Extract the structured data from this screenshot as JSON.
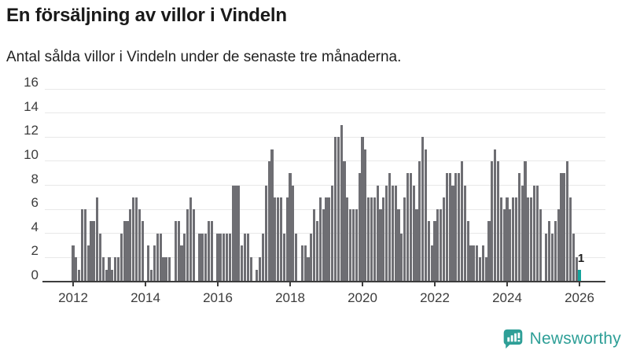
{
  "header": {
    "title": "En försäljning av villor i Vindeln",
    "subtitle": "Antal sålda villor i Vindeln under de senaste tre månaderna."
  },
  "chart_data": {
    "type": "bar",
    "title": "En försäljning av villor i Vindeln",
    "subtitle": "Antal sålda villor i Vindeln under de senaste tre månaderna.",
    "x_unit": "month",
    "x_start": "2012-01",
    "x_end": "2026-01",
    "values": [
      3,
      2,
      1,
      6,
      6,
      3,
      5,
      5,
      7,
      4,
      2,
      1,
      2,
      1,
      2,
      2,
      4,
      5,
      5,
      6,
      7,
      7,
      6,
      5,
      0,
      3,
      1,
      3,
      4,
      4,
      2,
      2,
      2,
      0,
      5,
      5,
      3,
      4,
      6,
      7,
      6,
      0,
      4,
      4,
      4,
      5,
      5,
      0,
      4,
      4,
      4,
      4,
      4,
      8,
      8,
      8,
      3,
      4,
      4,
      2,
      0,
      1,
      2,
      4,
      8,
      10,
      11,
      7,
      7,
      7,
      4,
      7,
      9,
      8,
      4,
      0,
      3,
      3,
      2,
      4,
      6,
      5,
      7,
      6,
      7,
      7,
      8,
      12,
      12,
      13,
      10,
      7,
      6,
      6,
      6,
      9,
      12,
      11,
      7,
      7,
      7,
      8,
      6,
      7,
      8,
      9,
      8,
      8,
      6,
      4,
      7,
      9,
      9,
      8,
      6,
      10,
      12,
      11,
      5,
      3,
      5,
      6,
      6,
      7,
      9,
      9,
      8,
      9,
      9,
      10,
      8,
      5,
      3,
      3,
      3,
      2,
      3,
      2,
      5,
      10,
      11,
      10,
      7,
      6,
      7,
      6,
      7,
      7,
      9,
      8,
      10,
      7,
      7,
      8,
      8,
      6,
      0,
      4,
      5,
      4,
      5,
      6,
      9,
      9,
      10,
      7,
      4,
      2,
      1
    ],
    "highlight": {
      "index": 168,
      "value": 1,
      "label": "1",
      "color": "#14a39b"
    },
    "bar_color": "#6e6e73",
    "ylim": [
      0,
      16
    ],
    "yticks": [
      0,
      2,
      4,
      6,
      8,
      10,
      12,
      14,
      16
    ],
    "xticks": [
      "2012",
      "2014",
      "2016",
      "2018",
      "2020",
      "2022",
      "2024",
      "2026"
    ],
    "grid": true,
    "legend": "none"
  },
  "footer": {
    "brand": "Newsworthy",
    "brand_color": "#2e9f97",
    "logo_icon": "bar-chart-speech-bubble-icon"
  }
}
